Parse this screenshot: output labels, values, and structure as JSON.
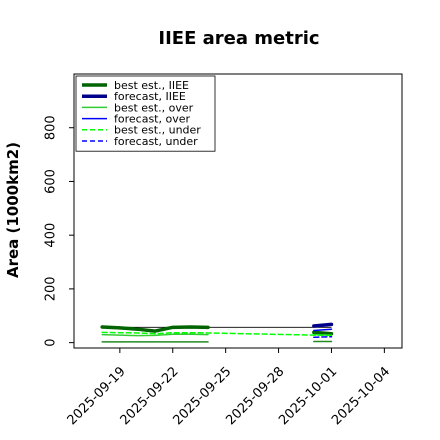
{
  "chart_data": {
    "type": "line",
    "title": "IIEE area metric",
    "xlabel": "",
    "ylabel": "Area (1000km2)",
    "x_ticks": [
      "2025-09-19",
      "2025-09-22",
      "2025-09-25",
      "2025-09-28",
      "2025-10-01",
      "2025-10-04"
    ],
    "x_tick_days": [
      0,
      3,
      6,
      9,
      12,
      15
    ],
    "highlighted_tick": "2025-09-25",
    "highlight_color": "#2e8b2e",
    "xlim_days": [
      -2.6,
      16.0
    ],
    "y_ticks": [
      0,
      200,
      400,
      600,
      800
    ],
    "ylim": [
      -20,
      1000
    ],
    "grid": false,
    "legend_placement": "top-left",
    "reference_line": {
      "color": "#000000",
      "points": [
        {
          "x": 0,
          "y": 57
        },
        {
          "x": 12,
          "y": 57
        }
      ]
    },
    "series": [
      {
        "name": "best est., IIEE",
        "color": "#006400",
        "dash": "solid",
        "width": 3.5,
        "segments": [
          [
            {
              "x": -1,
              "y": 58
            },
            {
              "x": 0,
              "y": 55
            },
            {
              "x": 1,
              "y": 50
            },
            {
              "x": 2,
              "y": 43
            },
            {
              "x": 3,
              "y": 57
            },
            {
              "x": 4,
              "y": 58
            },
            {
              "x": 5,
              "y": 57
            }
          ],
          [
            {
              "x": 11,
              "y": 38
            },
            {
              "x": 12,
              "y": 33
            }
          ]
        ]
      },
      {
        "name": "forecast, IIEE",
        "color": "#00008b",
        "dash": "solid",
        "width": 3.5,
        "segments": [
          [
            {
              "x": 11,
              "y": 62
            },
            {
              "x": 12,
              "y": 68
            }
          ]
        ]
      },
      {
        "name": "best est., over",
        "color": "#32cd32",
        "dash": "solid",
        "width": 1.5,
        "segments": [
          [
            {
              "x": -1,
              "y": 30
            },
            {
              "x": 0,
              "y": 28
            },
            {
              "x": 1,
              "y": 26
            },
            {
              "x": 2,
              "y": 27
            },
            {
              "x": 3,
              "y": 31
            },
            {
              "x": 4,
              "y": 31
            },
            {
              "x": 5,
              "y": 30
            }
          ],
          [
            {
              "x": 11,
              "y": 30
            },
            {
              "x": 12,
              "y": 28
            }
          ]
        ]
      },
      {
        "name": "forecast, over",
        "color": "#0000ff",
        "dash": "solid",
        "width": 1.5,
        "segments": [
          [
            {
              "x": 11,
              "y": 45
            },
            {
              "x": 12,
              "y": 50
            }
          ]
        ]
      },
      {
        "name": "best est., under",
        "color": "#00ff00",
        "dash": "dashed",
        "width": 1.5,
        "segments": [
          [
            {
              "x": -1,
              "y": 38
            },
            {
              "x": 0,
              "y": 37
            },
            {
              "x": 1,
              "y": 36
            },
            {
              "x": 2,
              "y": 33
            },
            {
              "x": 3,
              "y": 37
            },
            {
              "x": 4,
              "y": 37
            },
            {
              "x": 5,
              "y": 36
            },
            {
              "x": 11,
              "y": 28
            },
            {
              "x": 12,
              "y": 27
            }
          ]
        ]
      },
      {
        "name": "forecast, under",
        "color": "#0000ff",
        "dash": "dashed",
        "width": 1.5,
        "segments": [
          [
            {
              "x": 11,
              "y": 20
            },
            {
              "x": 12,
              "y": 22
            }
          ]
        ]
      },
      {
        "color": "#228b22",
        "dash": "solid",
        "width": 1.5,
        "segments": [
          [
            {
              "x": -1,
              "y": 3
            },
            {
              "x": 5,
              "y": 3
            }
          ],
          [
            {
              "x": 11,
              "y": 4
            },
            {
              "x": 12,
              "y": 4
            }
          ]
        ]
      }
    ]
  }
}
